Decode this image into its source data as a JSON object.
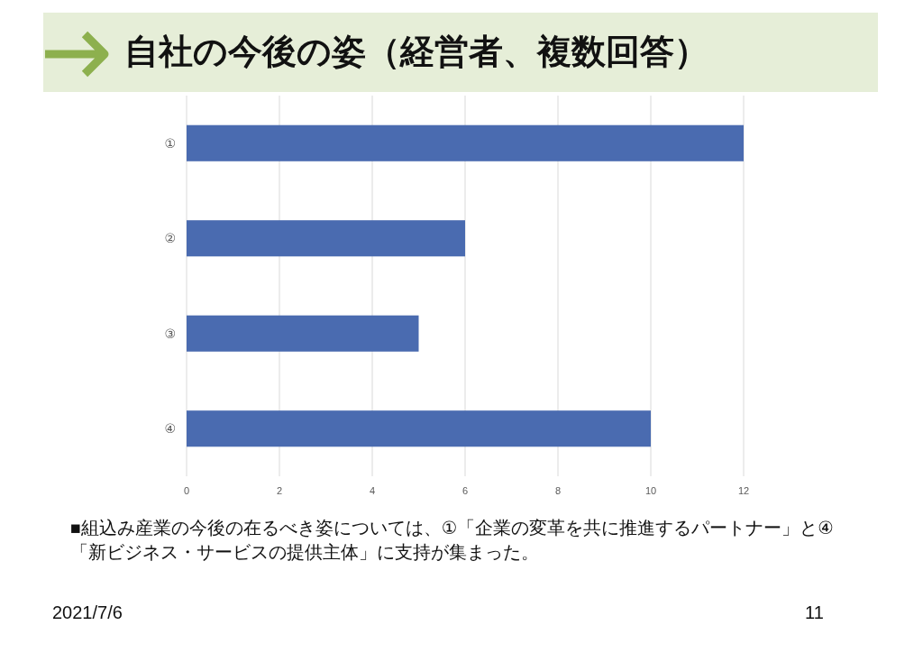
{
  "chart_data": {
    "type": "bar",
    "orientation": "horizontal",
    "title": "自社の今後の姿（経営者、複数回答）",
    "categories": [
      "①",
      "②",
      "③",
      "④"
    ],
    "values": [
      12,
      6,
      5,
      10
    ],
    "color": "#4a6bb0",
    "xlim": [
      0,
      12
    ],
    "xticks": [
      0,
      2,
      4,
      6,
      8,
      10,
      12
    ],
    "grid": "x",
    "annotations": [
      "■組込み産業の今後の在るべき姿については、①「企業の変革を共に推進するパートナー」と④「新ビジネス・サービスの提供主体」に支持が集まった。",
      "2021/7/6",
      "11"
    ]
  }
}
